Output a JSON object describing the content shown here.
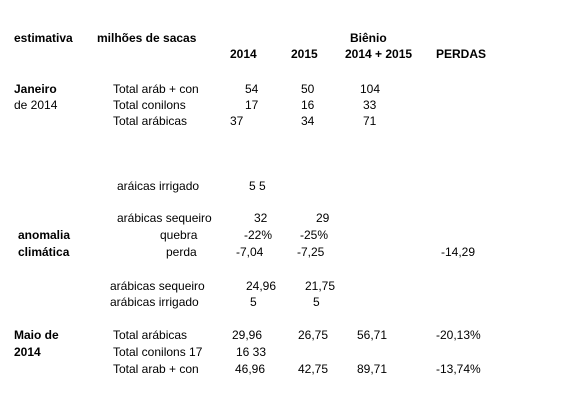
{
  "header": {
    "estimativa": "estimativa",
    "milhoes": "milhões de sacas",
    "bienio": "Biênio",
    "y2014": "2014",
    "y2015": "2015",
    "y2014_2015": "2014 + 2015",
    "perdas": "PERDAS"
  },
  "janeiro": {
    "title": [
      "Janeiro",
      "de 2014"
    ],
    "rows": [
      [
        "Total aráb + con",
        "54",
        "50",
        "104"
      ],
      [
        "Total conilons",
        "17",
        "16",
        "33"
      ],
      [
        "Total arábicas",
        "37",
        "34",
        "71"
      ]
    ]
  },
  "anomalia": {
    "title": [
      "anomalia",
      "climática"
    ],
    "irrigado": [
      "aráicas irrigado",
      "5 5"
    ],
    "rows": [
      [
        "arábicas sequeiro",
        "32",
        "29"
      ],
      [
        "quebra",
        "-22%",
        "-25%"
      ],
      [
        "perda",
        "-7,04",
        "-7,25",
        "-14,29"
      ]
    ],
    "after": [
      [
        "arábicas sequeiro",
        "24,96",
        "21,75"
      ],
      [
        "arábicas irrigado",
        "5",
        "5"
      ]
    ]
  },
  "maio": {
    "title": [
      "Maio de",
      "2014"
    ],
    "rows": [
      [
        "Total arábicas",
        "29,96",
        "26,75",
        "56,71",
        "-20,13%"
      ],
      [
        "Total conilons 17",
        "16 33"
      ],
      [
        "Total arab + con",
        "46,96",
        "42,75",
        "89,71",
        "-13,74%"
      ]
    ]
  }
}
